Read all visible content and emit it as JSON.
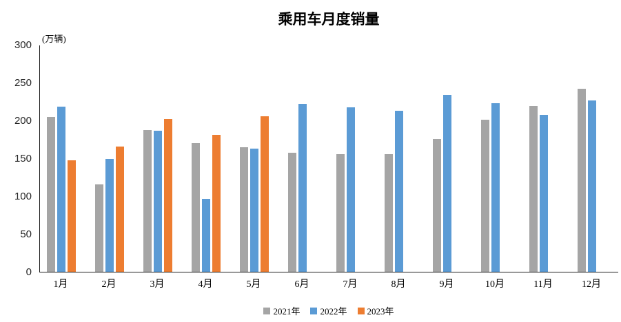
{
  "chart_data": {
    "type": "bar",
    "title": "乘用车月度销量",
    "unit_label": "(万辆)",
    "categories": [
      "1月",
      "2月",
      "3月",
      "4月",
      "5月",
      "6月",
      "7月",
      "8月",
      "9月",
      "10月",
      "11月",
      "12月"
    ],
    "series": [
      {
        "name": "2021年",
        "color": "#A5A5A5",
        "values": [
          204.5,
          115.6,
          187.4,
          170.4,
          164.6,
          156.9,
          155.1,
          155.2,
          175.1,
          200.7,
          219.2,
          242.2
        ]
      },
      {
        "name": "2022年",
        "color": "#5B9BD5",
        "values": [
          218.6,
          148.7,
          186.4,
          96.5,
          162.3,
          222.2,
          217.4,
          212.5,
          233.2,
          223.1,
          207.5,
          226.3
        ]
      },
      {
        "name": "2023年",
        "color": "#ED7D31",
        "values": [
          146.9,
          165.3,
          201.7,
          181.1,
          205.1,
          null,
          null,
          null,
          null,
          null,
          null,
          null
        ]
      }
    ],
    "ylim": [
      0,
      300
    ],
    "yticks": [
      0,
      50,
      100,
      150,
      200,
      250,
      300
    ],
    "grid": false,
    "legend_position": "bottom",
    "axis_color": "#1a1a1a"
  }
}
